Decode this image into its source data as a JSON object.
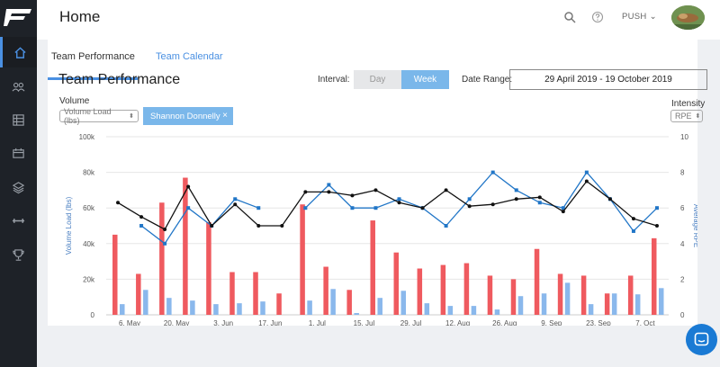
{
  "header": {
    "title": "Home",
    "menu_label": "PUSH",
    "search_icon": "search-icon",
    "help_icon": "help-circle-icon"
  },
  "sidebar": {
    "items": [
      {
        "icon": "home-icon",
        "active": true
      },
      {
        "icon": "users-icon",
        "active": false
      },
      {
        "icon": "table-icon",
        "active": false
      },
      {
        "icon": "calendar-icon",
        "active": false
      },
      {
        "icon": "layers-icon",
        "active": false
      },
      {
        "icon": "dumbbell-icon",
        "active": false
      },
      {
        "icon": "trophy-icon",
        "active": false
      }
    ]
  },
  "tabs": [
    {
      "label": "Team Performance",
      "active": true
    },
    {
      "label": "Team Calendar",
      "active": false
    }
  ],
  "panel": {
    "title": "Team Performance",
    "interval_label": "Interval:",
    "interval_options": [
      "Day",
      "Week"
    ],
    "interval_selected": "Week",
    "date_range_label": "Date Range:",
    "date_range_value": "29 April 2019 - 19 October 2019",
    "volume_label": "Volume",
    "volume_select": "Volume Load (lbs)",
    "athlete_chip": "Shannon Donnelly",
    "intensity_label": "Intensity",
    "intensity_select": "RPE"
  },
  "colors": {
    "accent": "#4a90e2",
    "bar_red": "#ef5a5f",
    "bar_blue": "#8ab8ec",
    "line_blue": "#2176c7",
    "line_black": "#111111"
  },
  "chart_data": {
    "type": "bar",
    "ylabel": "Volume Load (lbs)",
    "y2label": "Average RPE",
    "ylim": [
      0,
      100000
    ],
    "y2lim": [
      0,
      10
    ],
    "y_ticks": [
      "0",
      "20k",
      "40k",
      "60k",
      "80k",
      "100k"
    ],
    "y2_ticks": [
      "0",
      "2",
      "4",
      "6",
      "8",
      "10"
    ],
    "x_tick_labels": [
      "6. May",
      "20. May",
      "3. Jun",
      "17. Jun",
      "1. Jul",
      "15. Jul",
      "29. Jul",
      "12. Aug",
      "26. Aug",
      "9. Sep",
      "23. Sep",
      "7. Oct"
    ],
    "series": [
      {
        "kind": "bar",
        "values": [
          45000,
          23000,
          63000,
          77000,
          52000,
          24000,
          24000,
          12000,
          62000,
          27000,
          14000,
          53000,
          35000,
          26000,
          28000,
          29000,
          22000,
          20000,
          37000,
          23000,
          22000,
          12000,
          22000,
          43000
        ]
      },
      {
        "kind": "bar",
        "values": [
          6000,
          14000,
          9500,
          8000,
          6000,
          6500,
          7500,
          0,
          8000,
          14500,
          1000,
          9500,
          13500,
          6500,
          5000,
          5000,
          3000,
          10500,
          12000,
          18000,
          6000,
          12000,
          11500,
          15000
        ]
      },
      {
        "kind": "line",
        "axis": "y2",
        "values": [
          null,
          5,
          4,
          6,
          5,
          6.5,
          6,
          null,
          6,
          7.3,
          6,
          6,
          6.5,
          6,
          5,
          6.5,
          8,
          7,
          6.3,
          6,
          8,
          6.5,
          4.7,
          6
        ]
      },
      {
        "kind": "line",
        "axis": "y2",
        "values": [
          6.3,
          5.5,
          4.8,
          7.2,
          5,
          6.2,
          5,
          5,
          6.9,
          6.9,
          6.7,
          7,
          6.3,
          6,
          7,
          6.1,
          6.2,
          6.5,
          6.6,
          5.8,
          7.5,
          6.5,
          5.4,
          5
        ]
      }
    ]
  }
}
